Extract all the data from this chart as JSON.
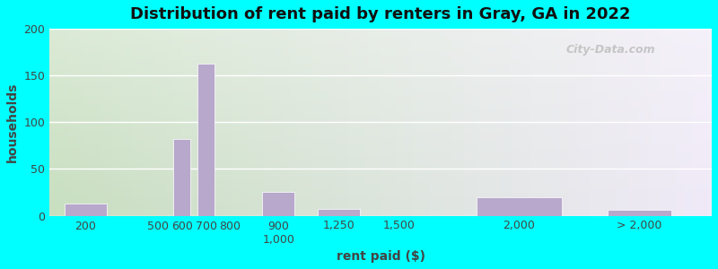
{
  "title": "Distribution of rent paid by renters in Gray, GA in 2022",
  "xlabel": "rent paid ($)",
  "ylabel": "households",
  "background_outer": "#00FFFF",
  "background_inner_left": "#c8dfc0",
  "background_inner_right": "#f0eaf8",
  "bar_color": "#b8a8cc",
  "bar_edge_color": "#ffffff",
  "ylim": [
    0,
    200
  ],
  "yticks": [
    0,
    50,
    100,
    150,
    200
  ],
  "tick_positions": [
    200,
    500,
    600,
    700,
    800,
    1000,
    1250,
    1500,
    2000,
    2500
  ],
  "tick_labels": [
    "200",
    "500",
    "600",
    "700",
    "800",
    "900\n1,000",
    "1,250",
    "1,500",
    "2,000",
    "> 2,000"
  ],
  "bar_centers": [
    200,
    500,
    600,
    700,
    800,
    1000,
    1250,
    1500,
    2000,
    2500
  ],
  "bar_widths": [
    200,
    200,
    80,
    80,
    100,
    150,
    200,
    300,
    400,
    300
  ],
  "values": [
    13,
    0,
    82,
    163,
    0,
    26,
    7,
    0,
    20,
    6
  ],
  "title_fontsize": 13,
  "axis_label_fontsize": 10,
  "tick_fontsize": 9,
  "watermark_text": "City-Data.com"
}
